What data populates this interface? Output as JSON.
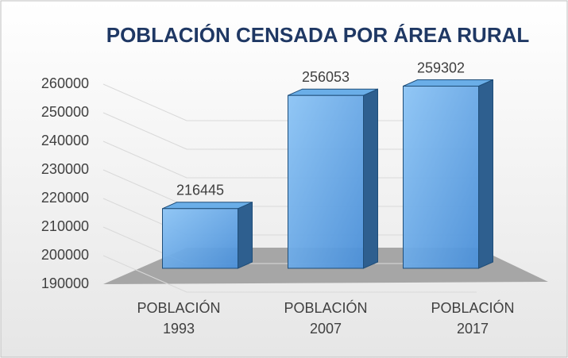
{
  "chart_data": {
    "type": "bar",
    "title": "POBLACIÓN CENSADA POR ÁREA RURAL",
    "categories": [
      "POBLACIÓN 1993",
      "POBLACIÓN 2007",
      "POBLACIÓN 2017"
    ],
    "values": [
      216445,
      256053,
      259302
    ],
    "color": "#5b9bd5",
    "ylim": [
      190000,
      260000
    ],
    "yticks": [
      190000,
      200000,
      210000,
      220000,
      230000,
      240000,
      250000,
      260000
    ],
    "grid": true
  }
}
